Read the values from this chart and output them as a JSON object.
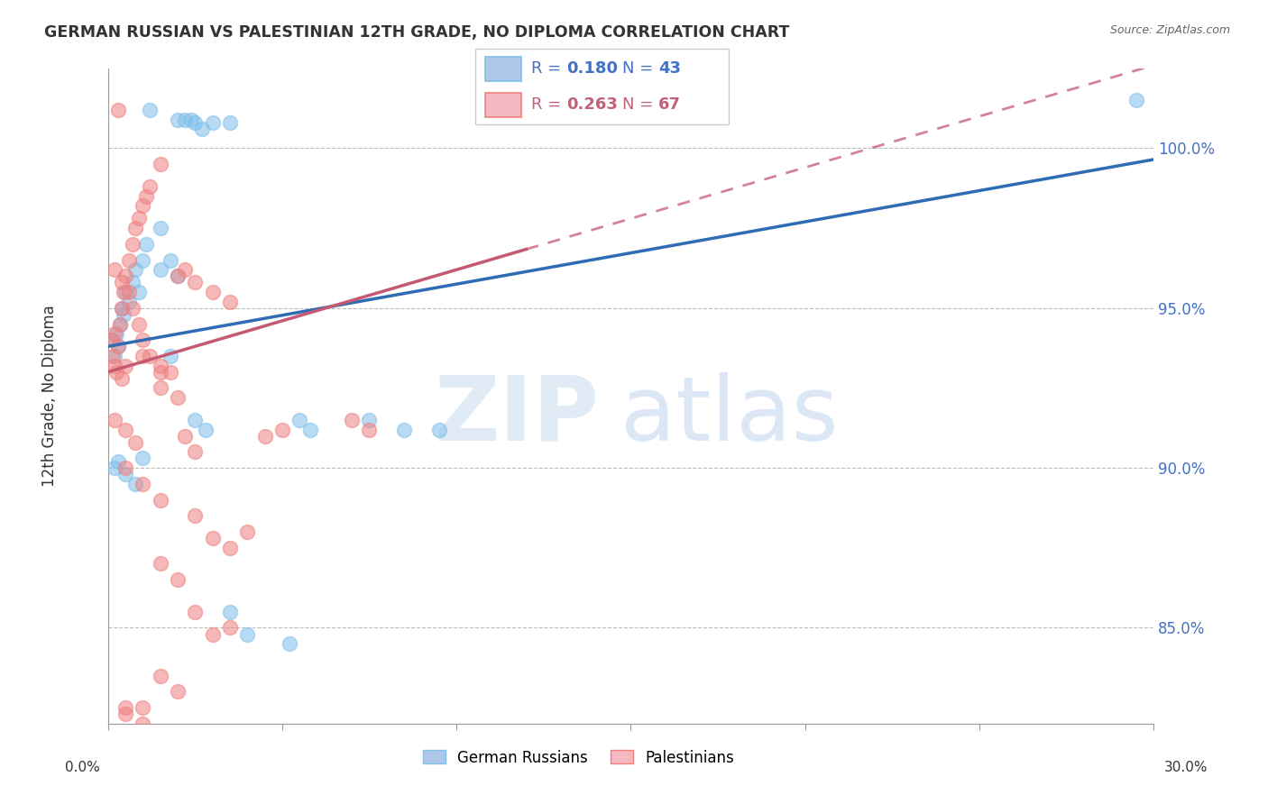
{
  "title": "GERMAN RUSSIAN VS PALESTINIAN 12TH GRADE, NO DIPLOMA CORRELATION CHART",
  "source": "Source: ZipAtlas.com",
  "ylabel": "12th Grade, No Diploma",
  "german_russian_label": "German Russians",
  "palestinian_label": "Palestinians",
  "xlim": [
    0.0,
    30.0
  ],
  "ylim": [
    82.0,
    102.5
  ],
  "ytick_vals": [
    85.0,
    90.0,
    95.0,
    100.0
  ],
  "ytick_labels": [
    "85.0%",
    "90.0%",
    "95.0%",
    "100.0%"
  ],
  "blue_color": "#7fbfea",
  "pink_color": "#f08080",
  "blue_line_color": "#2e6db4",
  "pink_line_color": "#c45a72",
  "blue_intercept": 93.8,
  "blue_slope": 0.195,
  "pink_intercept": 93.0,
  "pink_slope": 0.32,
  "pink_solid_end": 12.0,
  "blue_points": [
    [
      0.15,
      94.0
    ],
    [
      0.2,
      93.5
    ],
    [
      0.25,
      94.2
    ],
    [
      0.3,
      93.8
    ],
    [
      0.35,
      94.5
    ],
    [
      0.4,
      95.0
    ],
    [
      0.45,
      94.8
    ],
    [
      0.5,
      95.5
    ],
    [
      0.6,
      95.2
    ],
    [
      0.7,
      95.8
    ],
    [
      0.8,
      96.2
    ],
    [
      0.9,
      95.5
    ],
    [
      1.0,
      96.5
    ],
    [
      1.1,
      97.0
    ],
    [
      1.2,
      101.2
    ],
    [
      1.5,
      97.5
    ],
    [
      1.8,
      96.5
    ],
    [
      2.0,
      100.9
    ],
    [
      2.2,
      100.9
    ],
    [
      2.4,
      100.9
    ],
    [
      2.5,
      100.8
    ],
    [
      2.7,
      100.6
    ],
    [
      3.0,
      100.8
    ],
    [
      3.5,
      100.8
    ],
    [
      0.2,
      90.0
    ],
    [
      0.3,
      90.2
    ],
    [
      0.5,
      89.8
    ],
    [
      0.8,
      89.5
    ],
    [
      1.0,
      90.3
    ],
    [
      1.5,
      96.2
    ],
    [
      2.0,
      96.0
    ],
    [
      1.8,
      93.5
    ],
    [
      2.5,
      91.5
    ],
    [
      2.8,
      91.2
    ],
    [
      5.5,
      91.5
    ],
    [
      5.8,
      91.2
    ],
    [
      7.5,
      91.5
    ],
    [
      8.5,
      91.2
    ],
    [
      9.5,
      91.2
    ],
    [
      3.5,
      85.5
    ],
    [
      4.0,
      84.8
    ],
    [
      5.2,
      84.5
    ],
    [
      29.5,
      101.5
    ]
  ],
  "pink_points": [
    [
      0.1,
      94.0
    ],
    [
      0.15,
      93.5
    ],
    [
      0.2,
      94.2
    ],
    [
      0.25,
      93.0
    ],
    [
      0.3,
      93.8
    ],
    [
      0.35,
      94.5
    ],
    [
      0.4,
      95.0
    ],
    [
      0.45,
      95.5
    ],
    [
      0.5,
      96.0
    ],
    [
      0.6,
      96.5
    ],
    [
      0.7,
      97.0
    ],
    [
      0.8,
      97.5
    ],
    [
      0.9,
      97.8
    ],
    [
      1.0,
      98.2
    ],
    [
      1.1,
      98.5
    ],
    [
      1.2,
      98.8
    ],
    [
      1.5,
      99.5
    ],
    [
      0.3,
      101.2
    ],
    [
      0.2,
      96.2
    ],
    [
      0.4,
      95.8
    ],
    [
      0.6,
      95.5
    ],
    [
      0.7,
      95.0
    ],
    [
      0.9,
      94.5
    ],
    [
      1.0,
      94.0
    ],
    [
      1.2,
      93.5
    ],
    [
      1.5,
      93.0
    ],
    [
      2.0,
      96.0
    ],
    [
      2.2,
      96.2
    ],
    [
      2.5,
      95.8
    ],
    [
      3.0,
      95.5
    ],
    [
      3.5,
      95.2
    ],
    [
      0.2,
      93.2
    ],
    [
      0.4,
      92.8
    ],
    [
      1.5,
      93.2
    ],
    [
      1.8,
      93.0
    ],
    [
      0.2,
      91.5
    ],
    [
      0.5,
      91.2
    ],
    [
      0.8,
      90.8
    ],
    [
      2.2,
      91.0
    ],
    [
      2.5,
      90.5
    ],
    [
      4.5,
      91.0
    ],
    [
      5.0,
      91.2
    ],
    [
      7.0,
      91.5
    ],
    [
      7.5,
      91.2
    ],
    [
      0.5,
      90.0
    ],
    [
      1.0,
      89.5
    ],
    [
      1.5,
      89.0
    ],
    [
      2.5,
      88.5
    ],
    [
      3.0,
      87.8
    ],
    [
      1.5,
      87.0
    ],
    [
      2.0,
      86.5
    ],
    [
      2.5,
      85.5
    ],
    [
      3.0,
      84.8
    ],
    [
      3.5,
      87.5
    ],
    [
      4.0,
      88.0
    ],
    [
      0.5,
      82.5
    ],
    [
      1.0,
      82.0
    ],
    [
      1.5,
      83.5
    ],
    [
      2.0,
      83.0
    ],
    [
      3.5,
      85.0
    ],
    [
      0.5,
      93.2
    ],
    [
      1.0,
      93.5
    ],
    [
      1.5,
      92.5
    ],
    [
      2.0,
      92.2
    ],
    [
      0.5,
      82.3
    ],
    [
      1.0,
      82.5
    ]
  ]
}
